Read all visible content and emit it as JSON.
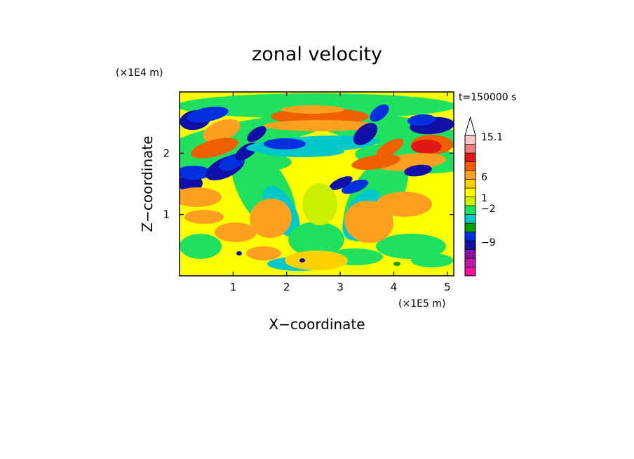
{
  "chart_data": {
    "type": "heatmap",
    "title": "zonal velocity",
    "xlabel": "X−coordinate",
    "ylabel": "Z−coordinate",
    "x_multiplier_label": "(×1E5 m)",
    "y_multiplier_label": "(×1E4 m)",
    "time_label": "t=150000 s",
    "xlim": [
      0,
      5.12
    ],
    "ylim": [
      0,
      3.0
    ],
    "x_ticks": [
      "1",
      "2",
      "3",
      "4",
      "5"
    ],
    "y_ticks": [
      "1",
      "2"
    ],
    "colorbar": {
      "labels": [
        "15.1",
        "6",
        "1",
        "−2",
        "−9"
      ],
      "levels": [
        {
          "color": "#f0109a"
        },
        {
          "color": "#c018a8"
        },
        {
          "color": "#8a10a0"
        },
        {
          "color": "#1010a8"
        },
        {
          "color": "#0030e0"
        },
        {
          "color": "#00a000"
        },
        {
          "color": "#00c8c8"
        },
        {
          "color": "#20e060"
        },
        {
          "color": "#c8f000"
        },
        {
          "color": "#ffff00"
        },
        {
          "color": "#ffd000"
        },
        {
          "color": "#ffa020"
        },
        {
          "color": "#f06000"
        },
        {
          "color": "#e01818"
        },
        {
          "color": "#f08080"
        },
        {
          "color": "#f8c8c8"
        }
      ],
      "extend_max": true
    },
    "field_note": "Filled contour field; background mostly yellow/green with blue/cyan and orange bands in upper half."
  }
}
